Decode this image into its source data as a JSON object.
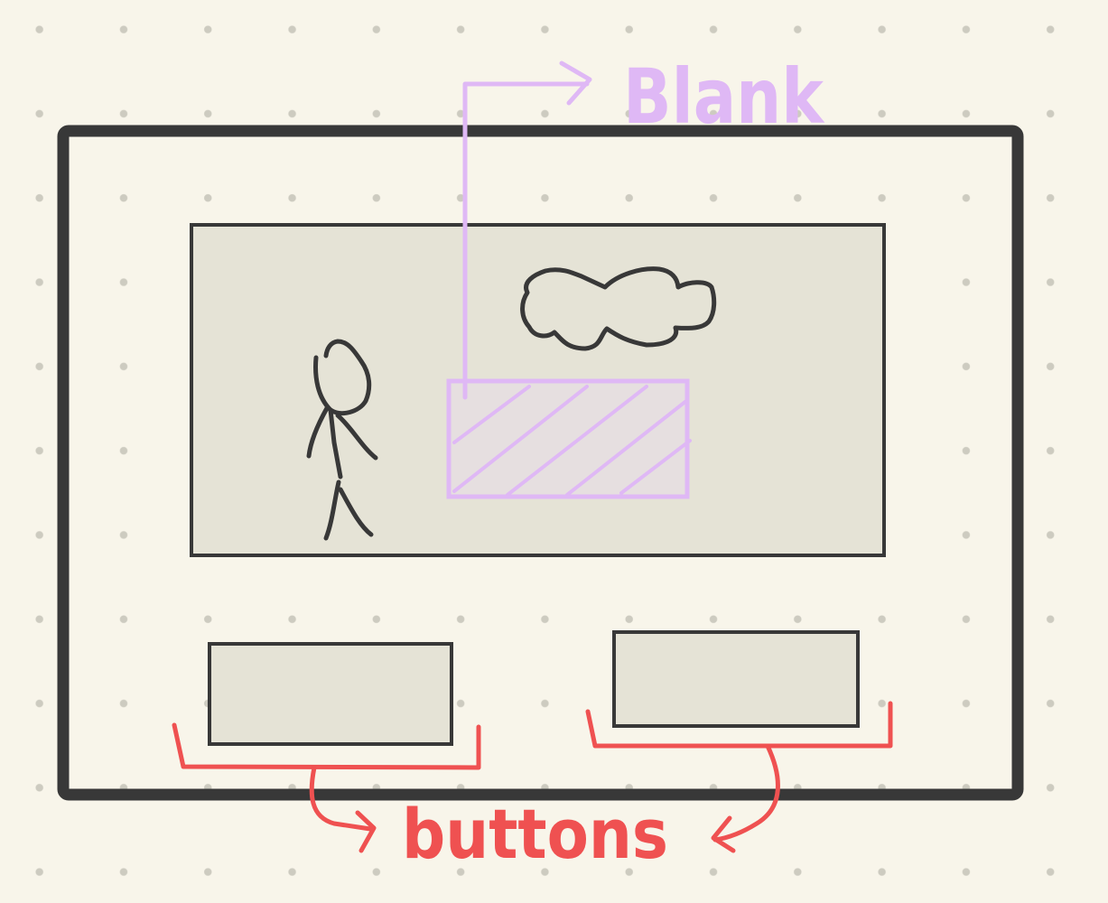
{
  "annotations": {
    "blank_label": "Blank",
    "buttons_label": "buttons"
  },
  "colors": {
    "ink": "#383838",
    "panel_fill": "#e5e3d6",
    "blank_annotation": "#dfb8f5",
    "buttons_annotation": "#ef5151",
    "background": "#f8f5ea"
  }
}
